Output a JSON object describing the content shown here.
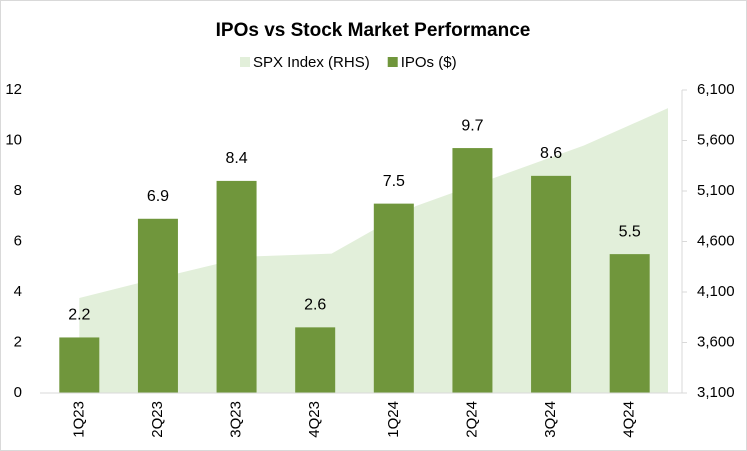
{
  "chart_data": {
    "type": "bar_area",
    "title": "IPOs vs Stock Market Performance",
    "categories": [
      "1Q23",
      "2Q23",
      "3Q23",
      "4Q23",
      "1Q24",
      "2Q24",
      "3Q24",
      "4Q24"
    ],
    "series": [
      {
        "name": "SPX Index (RHS)",
        "type": "area",
        "axis": "y2",
        "color": "#e2efda",
        "values": [
          4040,
          4250,
          4450,
          4480,
          4950,
          5250,
          5550,
          5920
        ]
      },
      {
        "name": "IPOs ($)",
        "type": "bar",
        "color": "#70963c",
        "values": [
          2.2,
          6.9,
          8.4,
          2.6,
          7.5,
          9.7,
          8.6,
          5.5
        ]
      }
    ],
    "ylim": [
      0,
      12
    ],
    "yticks": [
      0,
      2,
      4,
      6,
      8,
      10,
      12
    ],
    "y2lim": [
      3100,
      6100
    ],
    "y2ticks": [
      {
        "value": 3100,
        "label": "3,100"
      },
      {
        "value": 3600,
        "label": "3,600"
      },
      {
        "value": 4100,
        "label": "4,100"
      },
      {
        "value": 4600,
        "label": "4,600"
      },
      {
        "value": 5100,
        "label": "5,100"
      },
      {
        "value": 5600,
        "label": "5,600"
      },
      {
        "value": 6100,
        "label": "6,100"
      }
    ],
    "legend": "top"
  }
}
